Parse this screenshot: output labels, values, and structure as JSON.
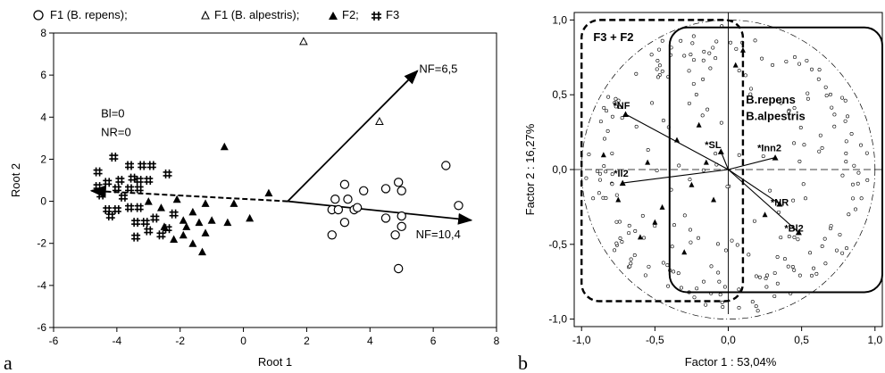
{
  "chart_data": [
    {
      "type": "scatter",
      "panel_label": "a",
      "xlabel": "Root 1",
      "ylabel": "Root 2",
      "xlim": [
        -6,
        8
      ],
      "ylim": [
        -6,
        8
      ],
      "xticks": [
        "-6",
        "-4",
        "-2",
        "0",
        "2",
        "4",
        "6",
        "8"
      ],
      "yticks": [
        "-6",
        "-4",
        "-2",
        "0",
        "2",
        "4",
        "6",
        "8"
      ],
      "legend_position": "top",
      "legend": [
        {
          "symbol": "circle-open",
          "label": "F1 (B. repens);"
        },
        {
          "symbol": "triangle-open",
          "label": "F1 (B. alpestris);"
        },
        {
          "symbol": "triangle-filled",
          "label": "F2;"
        },
        {
          "symbol": "cross-hash",
          "label": "F3"
        }
      ],
      "series": [
        {
          "name": "F1 (B. repens)",
          "marker": "circle-open",
          "points": [
            [
              6.4,
              1.7
            ],
            [
              6.8,
              -0.2
            ],
            [
              3.2,
              0.8
            ],
            [
              2.9,
              0.1
            ],
            [
              3.3,
              0.1
            ],
            [
              2.8,
              -0.4
            ],
            [
              3.0,
              -0.4
            ],
            [
              3.5,
              -0.4
            ],
            [
              3.8,
              0.5
            ],
            [
              4.5,
              0.6
            ],
            [
              4.9,
              0.9
            ],
            [
              5.0,
              0.5
            ],
            [
              4.5,
              -0.8
            ],
            [
              5.0,
              -0.7
            ],
            [
              5.0,
              -1.2
            ],
            [
              3.2,
              -1.0
            ],
            [
              2.8,
              -1.6
            ],
            [
              4.8,
              -1.6
            ],
            [
              4.9,
              -3.2
            ],
            [
              3.6,
              -0.3
            ]
          ]
        },
        {
          "name": "F1 (B. alpestris)",
          "marker": "triangle-open",
          "points": [
            [
              1.9,
              7.6
            ],
            [
              4.3,
              3.8
            ]
          ]
        },
        {
          "name": "F2",
          "marker": "triangle-filled",
          "points": [
            [
              -0.6,
              2.6
            ],
            [
              0.8,
              0.4
            ],
            [
              -0.3,
              -0.1
            ],
            [
              -1.2,
              -0.1
            ],
            [
              -2.1,
              0.1
            ],
            [
              -2.6,
              -0.3
            ],
            [
              -3.0,
              0.0
            ],
            [
              -1.6,
              -0.5
            ],
            [
              -1.9,
              -0.9
            ],
            [
              -1.4,
              -1.0
            ],
            [
              -1.0,
              -0.9
            ],
            [
              -0.5,
              -1.0
            ],
            [
              0.2,
              -0.8
            ],
            [
              -1.2,
              -1.5
            ],
            [
              -1.8,
              -1.2
            ],
            [
              -1.9,
              -1.6
            ],
            [
              -2.2,
              -1.8
            ],
            [
              -1.6,
              -2.0
            ],
            [
              -1.3,
              -2.4
            ],
            [
              -2.5,
              -1.2
            ]
          ]
        },
        {
          "name": "F3",
          "marker": "cross-hash",
          "points": [
            [
              -4.6,
              1.4
            ],
            [
              -4.1,
              2.1
            ],
            [
              -3.6,
              1.7
            ],
            [
              -3.2,
              1.7
            ],
            [
              -2.9,
              1.7
            ],
            [
              -2.4,
              1.3
            ],
            [
              -4.3,
              0.9
            ],
            [
              -3.9,
              1.0
            ],
            [
              -3.5,
              1.1
            ],
            [
              -3.3,
              1.0
            ],
            [
              -3.0,
              1.0
            ],
            [
              -4.6,
              0.7
            ],
            [
              -4.0,
              0.6
            ],
            [
              -3.6,
              0.6
            ],
            [
              -3.3,
              0.6
            ],
            [
              -4.3,
              -0.4
            ],
            [
              -4.0,
              -0.4
            ],
            [
              -3.6,
              -0.3
            ],
            [
              -3.3,
              -0.3
            ],
            [
              -4.2,
              -0.7
            ],
            [
              -3.4,
              -1.0
            ],
            [
              -3.1,
              -1.0
            ],
            [
              -2.8,
              -0.8
            ],
            [
              -3.0,
              -1.4
            ],
            [
              -2.6,
              -1.6
            ],
            [
              -3.4,
              -1.7
            ],
            [
              -2.4,
              -1.3
            ],
            [
              -4.5,
              0.3
            ],
            [
              -3.8,
              0.2
            ],
            [
              -2.2,
              -0.6
            ]
          ]
        }
      ],
      "vectors": [
        {
          "from": [
            1.4,
            0.0
          ],
          "to": [
            5.5,
            6.2
          ],
          "label": "NF=6,5",
          "style": "solid"
        },
        {
          "from": [
            1.4,
            0.0
          ],
          "to": [
            7.2,
            -0.9
          ],
          "label": "NF=10,4",
          "style": "solid"
        },
        {
          "from": [
            1.4,
            0.0
          ],
          "to": [
            -4.8,
            0.5
          ],
          "label": "",
          "style": "dashed"
        }
      ],
      "annotations": [
        {
          "text": "Bl=0",
          "at": [
            -4.5,
            4.0
          ]
        },
        {
          "text": "NR=0",
          "at": [
            -4.5,
            3.1
          ]
        }
      ]
    },
    {
      "type": "scatter",
      "panel_label": "b",
      "xlabel": "Factor 1 : 53,04%",
      "ylabel": "Factor 2 : 16,27%",
      "xlim": [
        -1.05,
        1.05
      ],
      "ylim": [
        -1.05,
        1.05
      ],
      "xticks": [
        "-1,0",
        "-0,5",
        "0,0",
        "0,5",
        "1,0"
      ],
      "yticks": [
        "-1,0",
        "-0,5",
        "0,0",
        "0,5",
        "1,0"
      ],
      "unit_circle": true,
      "variables": [
        {
          "name": "*NF",
          "x": -0.7,
          "y": 0.37
        },
        {
          "name": "*SL",
          "x": -0.05,
          "y": 0.12
        },
        {
          "name": "*Inn2",
          "x": 0.32,
          "y": 0.08
        },
        {
          "name": "*Il2",
          "x": -0.72,
          "y": -0.09
        },
        {
          "name": "*NR",
          "x": 0.35,
          "y": -0.23
        },
        {
          "name": "*Bl2",
          "x": 0.48,
          "y": -0.42
        }
      ],
      "groups": [
        {
          "label": "F3 + F2",
          "style": "dashed-rounded-rect",
          "extent": [
            [
              -1.0,
              -0.88
            ],
            [
              0.1,
              1.0
            ]
          ]
        },
        {
          "label": "B.repens",
          "style": "solid-rounded-rect",
          "extent": [
            [
              -0.4,
              -0.82
            ],
            [
              1.05,
              0.95
            ]
          ]
        },
        {
          "label": "B.alpestris",
          "style": "",
          "extent": []
        }
      ]
    }
  ]
}
